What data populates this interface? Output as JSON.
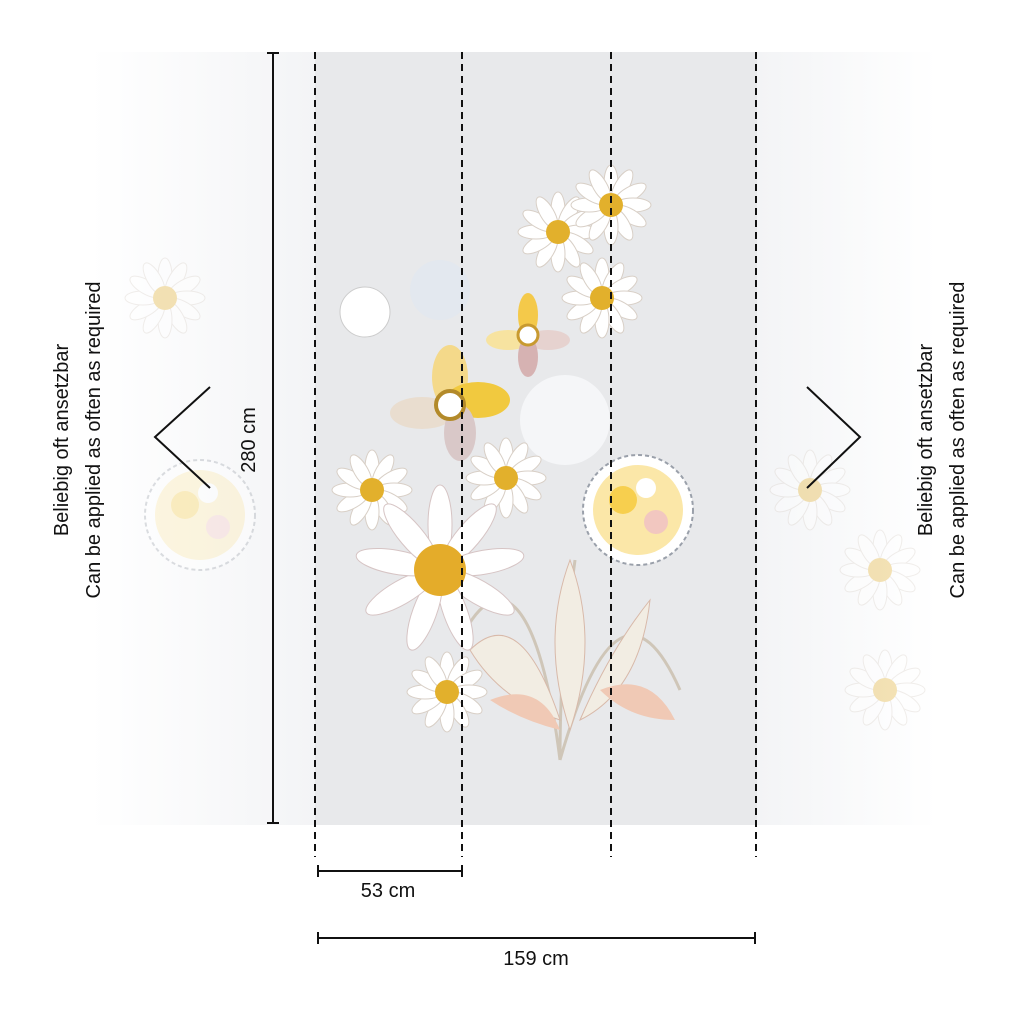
{
  "dimensions": {
    "height": "280 cm",
    "panel_width": "53 cm",
    "total_width": "159 cm"
  },
  "notes": {
    "left": [
      "Beliebig oft ansetzbar",
      "Can be applied as often as required"
    ],
    "right": [
      "Beliebig oft ansetzbar",
      "Can be applied as often as required"
    ]
  }
}
